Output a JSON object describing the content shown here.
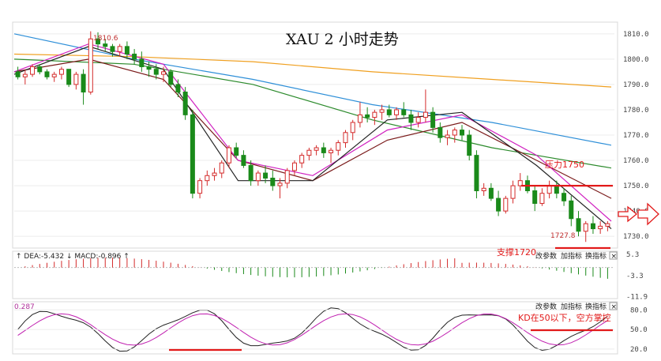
{
  "chart_data": {
    "type": "candlestick",
    "title": "XAU 2 小时走势",
    "price_axis": {
      "ticks": [
        "1810.0",
        "1800.0",
        "1790.0",
        "1780.0",
        "1770.0",
        "1760.0",
        "1750.0",
        "1740.0",
        "1730.0"
      ],
      "ylim": [
        1726,
        1814
      ]
    },
    "annotations": {
      "high_label": "1810.6",
      "low_label": "1727.8",
      "resistance_label": "压力1750",
      "resistance_value": 1750,
      "support_label": "支撑1720"
    },
    "candles": [
      [
        1795,
        1797,
        1792,
        1793
      ],
      [
        1793,
        1796,
        1790,
        1794
      ],
      [
        1794,
        1798,
        1793,
        1797
      ],
      [
        1797,
        1798,
        1794,
        1795
      ],
      [
        1795,
        1796,
        1792,
        1793
      ],
      [
        1793,
        1795,
        1791,
        1794
      ],
      [
        1794,
        1797,
        1792,
        1796
      ],
      [
        1796,
        1796,
        1789,
        1790
      ],
      [
        1790,
        1795,
        1788,
        1794
      ],
      [
        1794,
        1796,
        1782,
        1787
      ],
      [
        1787,
        1811,
        1786,
        1808
      ],
      [
        1808,
        1810.6,
        1804,
        1806
      ],
      [
        1806,
        1808,
        1803,
        1805
      ],
      [
        1805,
        1806,
        1801,
        1803
      ],
      [
        1803,
        1806,
        1801,
        1805
      ],
      [
        1805,
        1807,
        1800,
        1802
      ],
      [
        1802,
        1804,
        1798,
        1800
      ],
      [
        1800,
        1803,
        1795,
        1797
      ],
      [
        1797,
        1799,
        1793,
        1796
      ],
      [
        1796,
        1798,
        1792,
        1794
      ],
      [
        1794,
        1797,
        1791,
        1795
      ],
      [
        1795,
        1796,
        1789,
        1790
      ],
      [
        1790,
        1792,
        1785,
        1787
      ],
      [
        1787,
        1789,
        1776,
        1778
      ],
      [
        1778,
        1780,
        1745,
        1747
      ],
      [
        1747,
        1753,
        1745,
        1752
      ],
      [
        1752,
        1756,
        1750,
        1754
      ],
      [
        1754,
        1757,
        1752,
        1755
      ],
      [
        1755,
        1760,
        1753,
        1759
      ],
      [
        1759,
        1766,
        1757,
        1765
      ],
      [
        1765,
        1767,
        1761,
        1762
      ],
      [
        1762,
        1764,
        1757,
        1758
      ],
      [
        1758,
        1760,
        1750,
        1752
      ],
      [
        1752,
        1756,
        1750,
        1755
      ],
      [
        1755,
        1758,
        1751,
        1753
      ],
      [
        1753,
        1756,
        1748,
        1750
      ],
      [
        1750,
        1753,
        1745,
        1751
      ],
      [
        1751,
        1757,
        1749,
        1756
      ],
      [
        1756,
        1760,
        1754,
        1759
      ],
      [
        1759,
        1763,
        1757,
        1762
      ],
      [
        1762,
        1765,
        1760,
        1764
      ],
      [
        1764,
        1766,
        1762,
        1765
      ],
      [
        1765,
        1767,
        1761,
        1763
      ],
      [
        1763,
        1765,
        1759,
        1764
      ],
      [
        1764,
        1768,
        1762,
        1767
      ],
      [
        1767,
        1772,
        1765,
        1771
      ],
      [
        1771,
        1776,
        1768,
        1775
      ],
      [
        1775,
        1783,
        1773,
        1778
      ],
      [
        1778,
        1781,
        1775,
        1777
      ],
      [
        1777,
        1780,
        1774,
        1779
      ],
      [
        1779,
        1782,
        1776,
        1780
      ],
      [
        1780,
        1782,
        1777,
        1778
      ],
      [
        1778,
        1781,
        1776,
        1780
      ],
      [
        1780,
        1783,
        1777,
        1778
      ],
      [
        1778,
        1780,
        1772,
        1775
      ],
      [
        1775,
        1779,
        1773,
        1777
      ],
      [
        1777,
        1788,
        1775,
        1779
      ],
      [
        1779,
        1781,
        1771,
        1773
      ],
      [
        1773,
        1775,
        1767,
        1769
      ],
      [
        1769,
        1772,
        1766,
        1770
      ],
      [
        1770,
        1773,
        1767,
        1772
      ],
      [
        1772,
        1774,
        1768,
        1770
      ],
      [
        1770,
        1772,
        1760,
        1762
      ],
      [
        1762,
        1764,
        1745,
        1748
      ],
      [
        1748,
        1751,
        1746,
        1749
      ],
      [
        1749,
        1751,
        1744,
        1745
      ],
      [
        1745,
        1748,
        1738,
        1740
      ],
      [
        1740,
        1746,
        1739,
        1745
      ],
      [
        1745,
        1752,
        1743,
        1750
      ],
      [
        1750,
        1755,
        1748,
        1752
      ],
      [
        1752,
        1754,
        1747,
        1748
      ],
      [
        1748,
        1750,
        1740,
        1743
      ],
      [
        1743,
        1749,
        1742,
        1747
      ],
      [
        1747,
        1752,
        1745,
        1750
      ],
      [
        1750,
        1752,
        1745,
        1747
      ],
      [
        1747,
        1749,
        1742,
        1744
      ],
      [
        1744,
        1746,
        1734,
        1737
      ],
      [
        1737,
        1740,
        1730,
        1732
      ],
      [
        1732,
        1736,
        1727.8,
        1735
      ],
      [
        1735,
        1738,
        1731,
        1733
      ],
      [
        1733,
        1736,
        1731,
        1734
      ],
      [
        1734,
        1736,
        1732,
        1735
      ]
    ],
    "ma_lines": [
      {
        "color": "#2e8fd8",
        "values": [
          1810,
          1800,
          1792,
          1782,
          1775,
          1766
        ]
      },
      {
        "color": "#f0a020",
        "values": [
          1802,
          1801,
          1799,
          1795,
          1792,
          1789
        ]
      },
      {
        "color": "#2b8a2b",
        "values": [
          1800,
          1798,
          1790,
          1776,
          1765,
          1757
        ]
      },
      {
        "color": "#7a1a1a",
        "values": [
          1795,
          1800,
          1792,
          1760,
          1752,
          1768,
          1775,
          1760,
          1745
        ]
      },
      {
        "color": "#d020c0",
        "values": [
          1795,
          1806,
          1798,
          1760,
          1754,
          1772,
          1778,
          1762,
          1736
        ]
      },
      {
        "color": "#222222",
        "values": [
          1794,
          1805,
          1796,
          1752,
          1752,
          1776,
          1779,
          1758,
          1733
        ]
      }
    ],
    "macd": {
      "label": "DEA:-5.432",
      "label2": "MACD:-0.896",
      "ticks": [
        "5.3",
        "-3.3",
        "-11.9"
      ],
      "ylim": [
        -12,
        6
      ]
    },
    "kd": {
      "label": "0.287",
      "ticks": [
        "80.0",
        "50.0",
        "20.0"
      ],
      "ylim": [
        15,
        90
      ],
      "note": "KD在50以下，空方掌控"
    },
    "toolbar": {
      "btn_params": "改参数",
      "btn_add": "加指标",
      "btn_switch": "换指标",
      "btn_close": "×"
    },
    "colors": {
      "up": "#d42a2a",
      "down": "#1a8a1a",
      "resistance_line": "#e21a1a",
      "annotation_text": "#e21a1a"
    }
  }
}
